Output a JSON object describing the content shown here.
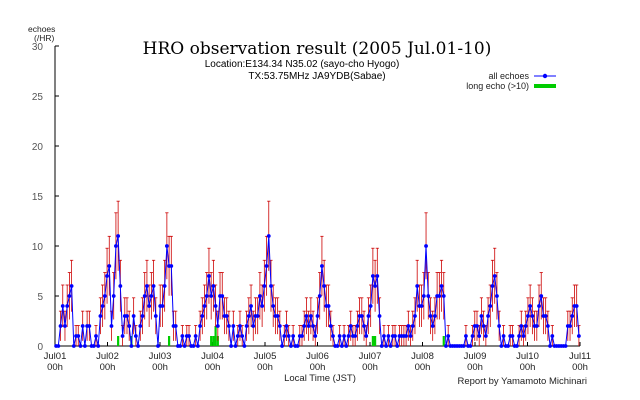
{
  "chart_data": {
    "type": "line",
    "title": "HRO observation result (2005 Jul.01-10)",
    "subtitle_lines": [
      "Location:E134.34 N35.02 (sayo-cho Hyogo)",
      "TX:53.75MHz JA9YDB(Sabae)"
    ],
    "ylabel_lines": [
      "echoes",
      "(/HR)"
    ],
    "xlabel": "Local Time (JST)",
    "footer": "Report by Yamamoto Michinari",
    "ylim": [
      0,
      30
    ],
    "yticks": [
      0,
      5,
      10,
      15,
      20,
      25,
      30
    ],
    "grid": false,
    "legend_position": "top-right",
    "xtick_labels": [
      [
        "Jul01",
        "00h"
      ],
      [
        "Jul02",
        "00h"
      ],
      [
        "Jul03",
        "00h"
      ],
      [
        "Jul04",
        "00h"
      ],
      [
        "Jul05",
        "00h"
      ],
      [
        "Jul06",
        "00h"
      ],
      [
        "Jul07",
        "00h"
      ],
      [
        "Jul08",
        "00h"
      ],
      [
        "Jul09",
        "00h"
      ],
      [
        "Jul10",
        "00h"
      ],
      [
        "Jul11",
        "00h"
      ]
    ],
    "x_unit_note": "hour index from Jul01 00h",
    "x_range": [
      0,
      240
    ],
    "series": [
      {
        "name": "all echoes",
        "kind": "line-with-markers",
        "color": "#0000ff",
        "error_bar_color": "#cc0000",
        "values": [
          0,
          0,
          2,
          4,
          2,
          4,
          5,
          6,
          0,
          1,
          1,
          0,
          2,
          0,
          2,
          2,
          0,
          0,
          1,
          0,
          3,
          4,
          5,
          7,
          8,
          2,
          5,
          10,
          11,
          6,
          1,
          3,
          3,
          2,
          0,
          3,
          1,
          0,
          2,
          3,
          5,
          6,
          4,
          5,
          6,
          3,
          0,
          4,
          4,
          6,
          10,
          8,
          8,
          2,
          2,
          0,
          0,
          1,
          0,
          1,
          1,
          0,
          0,
          1,
          0,
          2,
          3,
          4,
          5,
          7,
          5,
          6,
          4,
          2,
          5,
          5,
          3,
          3,
          2,
          0,
          2,
          0,
          1,
          2,
          1,
          0,
          2,
          3,
          4,
          2,
          3,
          3,
          5,
          4,
          6,
          8,
          11,
          6,
          4,
          3,
          3,
          2,
          0,
          1,
          2,
          1,
          0,
          1,
          0,
          0,
          1,
          1,
          2,
          3,
          2,
          3,
          2,
          1,
          3,
          5,
          8,
          6,
          4,
          4,
          2,
          1,
          0,
          0,
          1,
          0,
          1,
          0,
          1,
          2,
          1,
          1,
          2,
          3,
          3,
          2,
          1,
          3,
          4,
          7,
          6,
          7,
          3,
          0,
          1,
          0,
          1,
          0,
          1,
          1,
          0,
          1,
          1,
          1,
          1,
          2,
          1,
          2,
          3,
          6,
          4,
          4,
          5,
          10,
          5,
          3,
          2,
          3,
          5,
          5,
          6,
          5,
          0,
          1,
          0,
          0,
          0,
          0,
          0,
          0,
          0,
          1,
          0,
          0,
          1,
          2,
          2,
          1,
          3,
          2,
          1,
          3,
          4,
          6,
          7,
          5,
          2,
          0,
          1,
          0,
          0,
          1,
          1,
          0,
          0,
          1,
          2,
          1,
          2,
          3,
          4,
          3,
          2,
          2,
          4,
          5,
          3,
          3,
          2,
          0,
          1,
          0,
          0,
          0,
          0,
          0,
          0,
          2,
          2,
          3,
          4,
          4,
          1
        ]
      },
      {
        "name": "long echo (>10)",
        "kind": "bar",
        "color": "#00cc00",
        "values": [
          0,
          0,
          0,
          0,
          0,
          0,
          0,
          0,
          0,
          0,
          0,
          0,
          0,
          0,
          0,
          0,
          0,
          0,
          0,
          0,
          0,
          0,
          0,
          0,
          0,
          0,
          0,
          0,
          1,
          0,
          0,
          0,
          0,
          0,
          1,
          0,
          0,
          0,
          0,
          0,
          0,
          0,
          0,
          0,
          0,
          0,
          0,
          0,
          0,
          0,
          0,
          1,
          0,
          0,
          0,
          0,
          0,
          0,
          0,
          0,
          0,
          0,
          0,
          0,
          0,
          0,
          0,
          0,
          0,
          0,
          1,
          1,
          2,
          1,
          0,
          0,
          0,
          0,
          0,
          0,
          0,
          0,
          0,
          0,
          0,
          0,
          0,
          0,
          0,
          0,
          0,
          0,
          0,
          0,
          0,
          0,
          0,
          0,
          0,
          0,
          0,
          0,
          0,
          0,
          0,
          0,
          0,
          0,
          0,
          0,
          0,
          0,
          0,
          0,
          0,
          0,
          0,
          0,
          0,
          0,
          0,
          0,
          0,
          0,
          0,
          0,
          0,
          0,
          0,
          0,
          0,
          0,
          0,
          0,
          0,
          0,
          0,
          0,
          0,
          0,
          0,
          0,
          0,
          1,
          1,
          0,
          0,
          0,
          0,
          0,
          0,
          0,
          0,
          0,
          0,
          0,
          0,
          0,
          0,
          0,
          0,
          0,
          0,
          0,
          0,
          0,
          0,
          0,
          0,
          0,
          0,
          0,
          0,
          0,
          0,
          1,
          0,
          0,
          0,
          0,
          0,
          0,
          0,
          0,
          0,
          0,
          0,
          0,
          0,
          0,
          0,
          0,
          0,
          0,
          0,
          0,
          0,
          0,
          0,
          0,
          0,
          0,
          0,
          0,
          0,
          0,
          0,
          0,
          0,
          0,
          0,
          0,
          0,
          0,
          0,
          0,
          0,
          0,
          0,
          0,
          0,
          0,
          0,
          0,
          0,
          0,
          0,
          0,
          0,
          0,
          0,
          0,
          0,
          0,
          0,
          0,
          0,
          0,
          0,
          0,
          0
        ]
      }
    ]
  }
}
